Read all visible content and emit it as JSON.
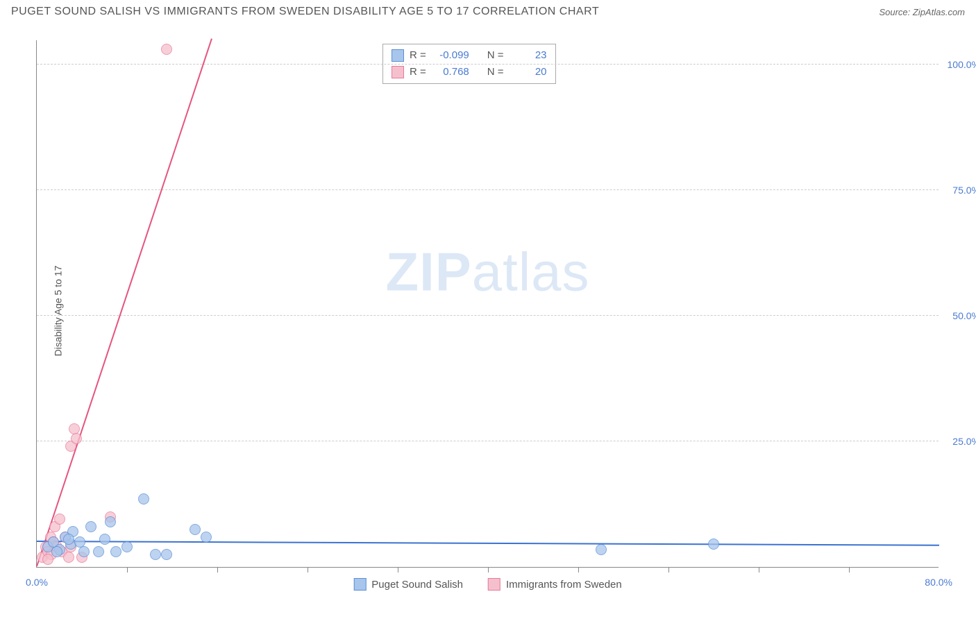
{
  "header": {
    "title": "PUGET SOUND SALISH VS IMMIGRANTS FROM SWEDEN DISABILITY AGE 5 TO 17 CORRELATION CHART",
    "source": "Source: ZipAtlas.com"
  },
  "axes": {
    "y_label": "Disability Age 5 to 17",
    "x_min": 0,
    "x_max": 80,
    "y_min": 0,
    "y_max": 105,
    "x_tick_min_label": "0.0%",
    "x_tick_max_label": "80.0%",
    "y_ticks": [
      {
        "v": 25,
        "label": "25.0%"
      },
      {
        "v": 50,
        "label": "50.0%"
      },
      {
        "v": 75,
        "label": "75.0%"
      },
      {
        "v": 100,
        "label": "100.0%"
      }
    ],
    "x_minor_ticks": [
      8,
      16,
      24,
      32,
      40,
      48,
      56,
      64,
      72
    ],
    "grid_color": "#cccccc"
  },
  "series": {
    "blue": {
      "name": "Puget Sound Salish",
      "color_fill": "#a8c5ec",
      "color_stroke": "#5b8fd6",
      "swatch_fill": "#a8c5ec",
      "swatch_border": "#5b8fd6",
      "R": "-0.099",
      "N": "23",
      "marker_radius": 8,
      "trend": {
        "x1": 0,
        "y1": 5.0,
        "x2": 80,
        "y2": 4.2,
        "color": "#3b72d1",
        "width": 2
      },
      "points": [
        {
          "x": 1.0,
          "y": 4.0
        },
        {
          "x": 1.5,
          "y": 5.0
        },
        {
          "x": 2.0,
          "y": 3.5
        },
        {
          "x": 2.5,
          "y": 6.0
        },
        {
          "x": 3.0,
          "y": 4.5
        },
        {
          "x": 3.2,
          "y": 7.0
        },
        {
          "x": 3.8,
          "y": 5.0
        },
        {
          "x": 4.2,
          "y": 3.0
        },
        {
          "x": 4.8,
          "y": 8.0
        },
        {
          "x": 5.5,
          "y": 3.0
        },
        {
          "x": 6.0,
          "y": 5.5
        },
        {
          "x": 6.5,
          "y": 9.0
        },
        {
          "x": 7.0,
          "y": 3.0
        },
        {
          "x": 8.0,
          "y": 4.0
        },
        {
          "x": 9.5,
          "y": 13.5
        },
        {
          "x": 10.5,
          "y": 2.5
        },
        {
          "x": 11.5,
          "y": 2.5
        },
        {
          "x": 14.0,
          "y": 7.5
        },
        {
          "x": 15.0,
          "y": 6.0
        },
        {
          "x": 50.0,
          "y": 3.5
        },
        {
          "x": 60.0,
          "y": 4.5
        },
        {
          "x": 1.8,
          "y": 3.0
        },
        {
          "x": 2.8,
          "y": 5.5
        }
      ]
    },
    "pink": {
      "name": "Immigrants from Sweden",
      "color_fill": "#f5c0cd",
      "color_stroke": "#e77a9a",
      "swatch_fill": "#f5c0cd",
      "swatch_border": "#e77a9a",
      "R": "0.768",
      "N": "20",
      "marker_radius": 8,
      "trend": {
        "x1": 0,
        "y1": 0,
        "x2": 15.5,
        "y2": 105,
        "color": "#e6547e",
        "width": 2
      },
      "points": [
        {
          "x": 0.5,
          "y": 2.0
        },
        {
          "x": 0.8,
          "y": 4.0
        },
        {
          "x": 1.0,
          "y": 3.0
        },
        {
          "x": 1.2,
          "y": 6.0
        },
        {
          "x": 1.3,
          "y": 2.5
        },
        {
          "x": 1.5,
          "y": 5.0
        },
        {
          "x": 1.6,
          "y": 8.0
        },
        {
          "x": 1.8,
          "y": 4.0
        },
        {
          "x": 2.0,
          "y": 9.5
        },
        {
          "x": 2.2,
          "y": 3.0
        },
        {
          "x": 2.5,
          "y": 6.0
        },
        {
          "x": 1.0,
          "y": 1.5
        },
        {
          "x": 2.8,
          "y": 2.0
        },
        {
          "x": 3.0,
          "y": 24.0
        },
        {
          "x": 3.3,
          "y": 27.5
        },
        {
          "x": 3.5,
          "y": 25.5
        },
        {
          "x": 4.0,
          "y": 2.0
        },
        {
          "x": 6.5,
          "y": 10.0
        },
        {
          "x": 3.0,
          "y": 4.0
        },
        {
          "x": 11.5,
          "y": 103.0
        }
      ]
    }
  },
  "stats_labels": {
    "R": "R =",
    "N": "N ="
  },
  "watermark": {
    "zip": "ZIP",
    "atlas": "atlas"
  },
  "bottom_legend_order": [
    "blue",
    "pink"
  ]
}
